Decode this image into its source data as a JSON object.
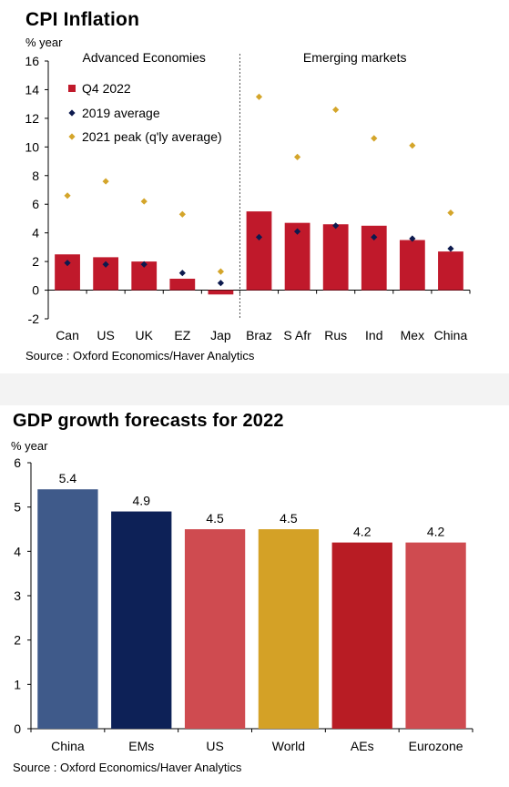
{
  "cpi": {
    "title": "CPI Inflation",
    "unit": "% year",
    "source": "Source : Oxford Economics/Haver Analytics",
    "chart_data": {
      "type": "bar",
      "ylim": [
        -2,
        16
      ],
      "yticks": [
        -2,
        0,
        2,
        4,
        6,
        8,
        10,
        12,
        14,
        16
      ],
      "categories": [
        "Can",
        "US",
        "UK",
        "EZ",
        "Jap",
        "Braz",
        "S Afr",
        "Rus",
        "Ind",
        "Mex",
        "China"
      ],
      "group_labels": [
        "Advanced Economies",
        "Emerging markets"
      ],
      "group_split_after": 5,
      "series": [
        {
          "name": "Q4 2022",
          "kind": "bar",
          "color": "#c0192b",
          "values": [
            2.5,
            2.3,
            2.0,
            0.8,
            -0.3,
            5.5,
            4.7,
            4.6,
            4.5,
            3.5,
            2.7
          ]
        },
        {
          "name": "2019 average",
          "kind": "marker",
          "marker": "diamond",
          "color": "#0d1a4e",
          "values": [
            1.9,
            1.8,
            1.8,
            1.2,
            0.5,
            3.7,
            4.1,
            4.5,
            3.7,
            3.6,
            2.9
          ]
        },
        {
          "name": "2021 peak (q'ly average)",
          "kind": "marker",
          "marker": "diamond",
          "color": "#d4a52a",
          "values": [
            6.6,
            7.6,
            6.2,
            5.3,
            1.3,
            13.5,
            9.3,
            12.6,
            10.6,
            10.1,
            5.4
          ]
        }
      ],
      "legend_position": "upper-left"
    }
  },
  "gdp": {
    "title": "GDP growth forecasts for 2022",
    "unit": "% year",
    "source": "Source : Oxford Economics/Haver Analytics",
    "chart_data": {
      "type": "bar",
      "ylim": [
        0,
        6
      ],
      "yticks": [
        0,
        1,
        2,
        3,
        4,
        5,
        6
      ],
      "categories": [
        "China",
        "EMs",
        "US",
        "World",
        "AEs",
        "Eurozone"
      ],
      "values": [
        5.4,
        4.9,
        4.5,
        4.5,
        4.2,
        4.2
      ],
      "value_labels": [
        "5.4",
        "4.9",
        "4.5",
        "4.5",
        "4.2",
        "4.2"
      ],
      "colors": [
        "#3f5a8a",
        "#0d2157",
        "#cf4b50",
        "#d4a126",
        "#b81c24",
        "#cf4b50"
      ]
    }
  }
}
